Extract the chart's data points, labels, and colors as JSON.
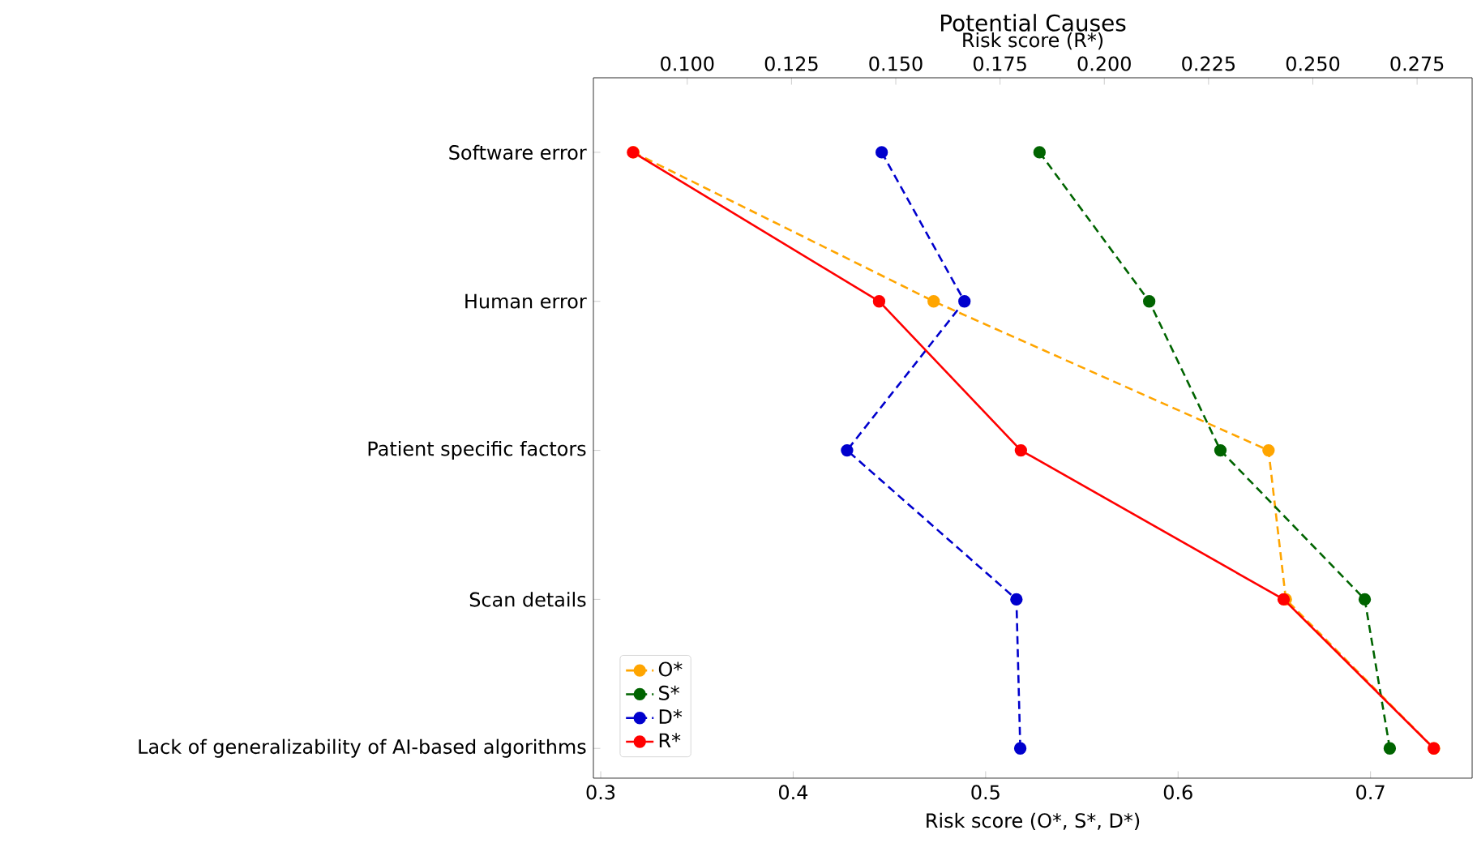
{
  "chart_data": {
    "type": "line",
    "orientation": "horizontal",
    "title": "Potential Causes",
    "xlabel": "Risk score (O*, S*, D*)",
    "x2label": "Risk score (R*)",
    "categories": [
      "Software error",
      "Human error",
      "Patient specific factors",
      "Scan details",
      "Lack of generalizability of AI-based algorithms"
    ],
    "series": [
      {
        "name": "O*",
        "color": "#ffa500",
        "line_style": "dashed",
        "values": [
          0.317,
          0.473,
          0.647,
          0.656,
          0.733
        ]
      },
      {
        "name": "S*",
        "color": "#006400",
        "line_style": "dashed",
        "values": [
          0.528,
          0.585,
          0.622,
          0.697,
          0.71
        ]
      },
      {
        "name": "D*",
        "color": "#0000cd",
        "line_style": "dashed",
        "values": [
          0.446,
          0.489,
          0.428,
          0.516,
          0.518
        ]
      },
      {
        "name": "R*",
        "color": "#ff0000",
        "line_style": "solid",
        "axis": "x2",
        "values": [
          0.087,
          0.146,
          0.18,
          0.243,
          0.279
        ]
      }
    ],
    "xlim": [
      0.2962,
      0.7528
    ],
    "xticks": [
      0.3,
      0.4,
      0.5,
      0.6,
      0.7
    ],
    "x2lim": [
      0.0775,
      0.2882
    ],
    "x2ticks": [
      {
        "value": 0.1,
        "label": "0.100"
      },
      {
        "value": 0.125,
        "label": "0.125"
      },
      {
        "value": 0.15,
        "label": "0.150"
      },
      {
        "value": 0.175,
        "label": "0.175"
      },
      {
        "value": 0.2,
        "label": "0.200"
      },
      {
        "value": 0.225,
        "label": "0.225"
      },
      {
        "value": 0.25,
        "label": "0.250"
      },
      {
        "value": 0.275,
        "label": "0.275"
      }
    ],
    "marker": "circle",
    "legend": "bottom left",
    "grid": false
  }
}
